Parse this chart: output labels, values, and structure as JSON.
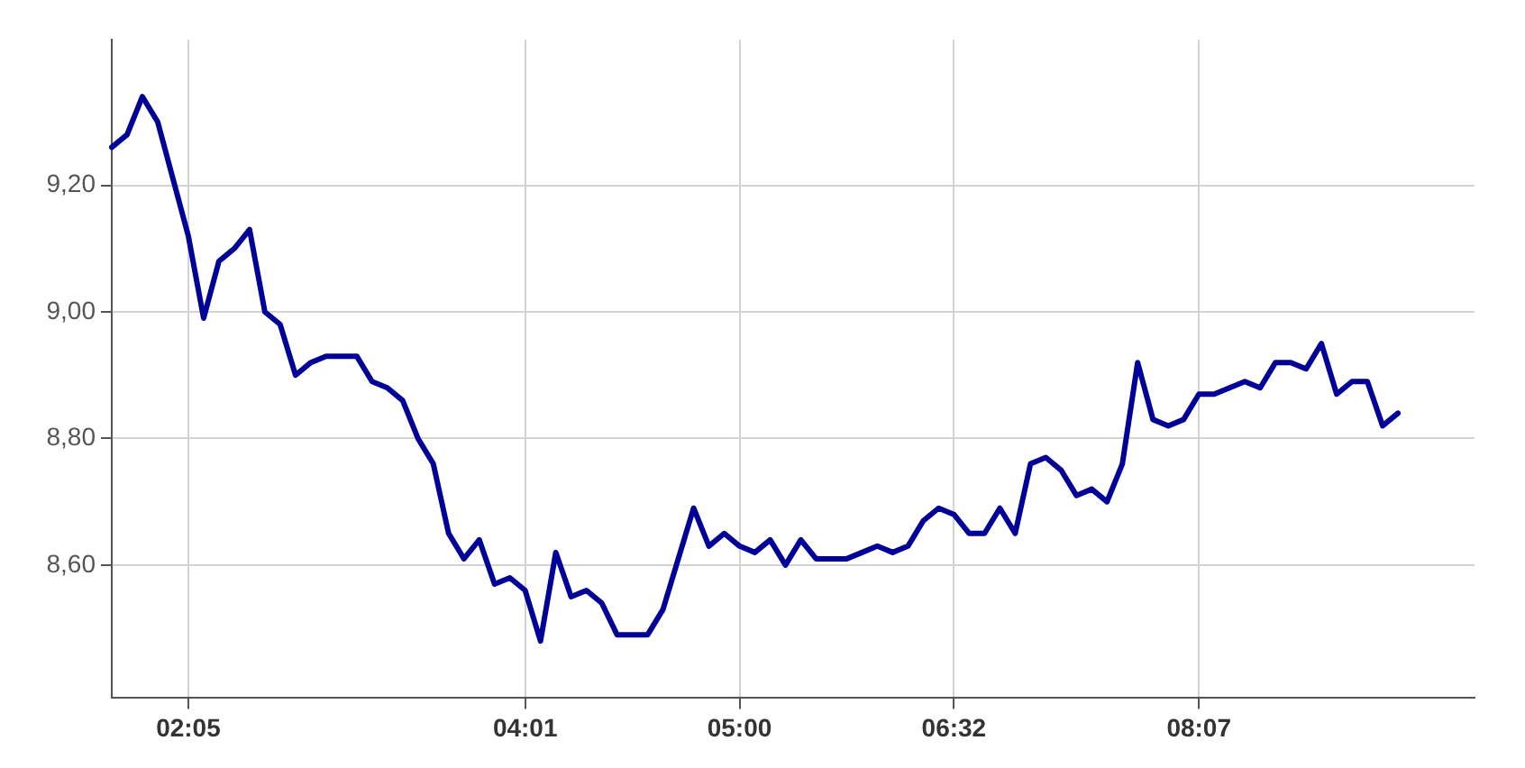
{
  "chart_data": {
    "type": "line",
    "categories": [
      null,
      null,
      null,
      null,
      null,
      "02:05",
      null,
      null,
      null,
      null,
      null,
      null,
      null,
      null,
      null,
      null,
      null,
      null,
      null,
      null,
      null,
      null,
      null,
      null,
      null,
      null,
      null,
      "04:01",
      null,
      null,
      null,
      null,
      null,
      null,
      null,
      null,
      null,
      null,
      null,
      null,
      null,
      "05:00",
      null,
      null,
      null,
      null,
      null,
      null,
      null,
      null,
      null,
      null,
      null,
      null,
      null,
      "06:32",
      null,
      null,
      null,
      null,
      null,
      null,
      null,
      null,
      null,
      null,
      null,
      null,
      null,
      null,
      null,
      "08:07",
      null,
      null,
      null,
      null,
      null,
      null,
      null,
      null,
      null,
      null,
      null,
      null,
      null,
      null,
      null,
      null,
      null,
      null
    ],
    "series": [
      {
        "color": "#000099",
        "values": [
          9.26,
          9.28,
          9.34,
          9.3,
          9.21,
          9.12,
          8.99,
          9.08,
          9.1,
          9.13,
          9.0,
          8.98,
          8.9,
          8.92,
          8.93,
          8.93,
          8.93,
          8.89,
          8.88,
          8.86,
          8.8,
          8.76,
          8.65,
          8.61,
          8.64,
          8.57,
          8.58,
          8.56,
          8.48,
          8.62,
          8.55,
          8.56,
          8.54,
          8.49,
          8.49,
          8.49,
          8.53,
          8.61,
          8.69,
          8.63,
          8.65,
          8.63,
          8.62,
          8.64,
          8.6,
          8.64,
          8.61,
          8.61,
          8.61,
          8.62,
          8.63,
          8.62,
          8.63,
          8.67,
          8.69,
          8.68,
          8.65,
          8.65,
          8.69,
          8.65,
          8.76,
          8.77,
          8.75,
          8.71,
          8.72,
          8.7,
          8.76,
          8.92,
          8.83,
          8.82,
          8.83,
          8.87,
          8.87,
          8.88,
          8.89,
          8.88,
          8.92,
          8.92,
          8.91,
          8.95,
          8.87,
          8.89,
          8.89,
          8.82,
          8.84,
          null,
          null,
          null,
          null,
          null
        ]
      }
    ],
    "ylim": [
      8.39,
      9.43
    ],
    "yticks": [
      {
        "value": 8.6,
        "label": "8,60"
      },
      {
        "value": 8.8,
        "label": "8,80"
      },
      {
        "value": 9.0,
        "label": "9,00"
      },
      {
        "value": 9.2,
        "label": "9,20"
      }
    ],
    "grid": true,
    "legend": false,
    "marker": "none",
    "line_style": "solid"
  }
}
